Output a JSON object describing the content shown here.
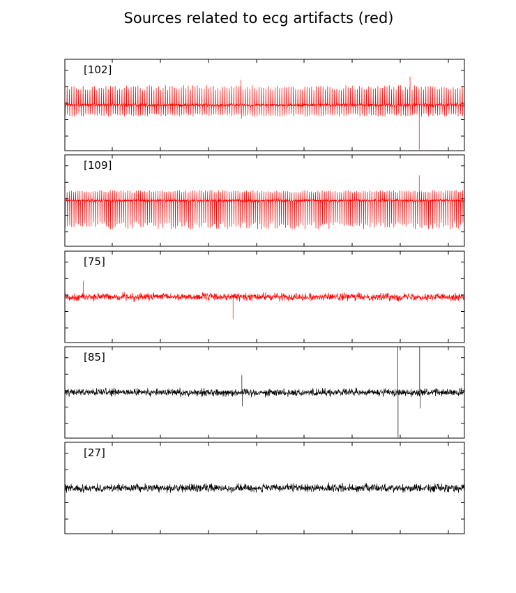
{
  "chart_data": {
    "type": "line",
    "title": "Sources related to ecg artifacts (red)",
    "highlight_color": "#ff0000",
    "default_color": "#000000",
    "xlabel": "",
    "ylabel": "",
    "grid": false,
    "tick_labels_shown": false,
    "panels": [
      {
        "label": "[102]",
        "color": "#ff0000",
        "pattern": "ecg",
        "baseline": 0.0,
        "noise": 0.05,
        "beat_count": 175,
        "beat_amplitude_up": 0.38,
        "beat_amplitude_down": 0.22,
        "spikes": [
          {
            "x": 0.441,
            "y": 0.55
          },
          {
            "x": 0.442,
            "y": -0.3
          },
          {
            "x": 0.864,
            "y": 0.62
          },
          {
            "x": 0.887,
            "y": -0.98
          }
        ],
        "ylim": [
          -1,
          1
        ]
      },
      {
        "label": "[109]",
        "color": "#ff0000",
        "pattern": "ecg",
        "baseline": 0.0,
        "noise": 0.04,
        "beat_count": 185,
        "beat_amplitude_up": 0.2,
        "beat_amplitude_down": 0.55,
        "spikes": [
          {
            "x": 0.887,
            "y": 0.55
          }
        ],
        "ylim": [
          -1,
          1
        ]
      },
      {
        "label": "[75]",
        "color": "#ff0000",
        "pattern": "noise",
        "baseline": 0.0,
        "noise": 0.12,
        "beat_count": 0,
        "beat_amplitude_up": 0.0,
        "beat_amplitude_down": 0.0,
        "spikes": [
          {
            "x": 0.421,
            "y": -0.48
          },
          {
            "x": 0.046,
            "y": 0.35
          }
        ],
        "ylim": [
          -1,
          1
        ]
      },
      {
        "label": "[85]",
        "color": "#000000",
        "pattern": "noise",
        "baseline": 0.0,
        "noise": 0.12,
        "beat_count": 0,
        "beat_amplitude_up": 0.0,
        "beat_amplitude_down": 0.0,
        "spikes": [
          {
            "x": 0.443,
            "y": 0.38
          },
          {
            "x": 0.444,
            "y": -0.3
          },
          {
            "x": 0.833,
            "y": 1.0
          },
          {
            "x": 0.834,
            "y": -0.98
          },
          {
            "x": 0.888,
            "y": 1.0
          },
          {
            "x": 0.889,
            "y": -0.35
          }
        ],
        "ylim": [
          -1,
          1
        ]
      },
      {
        "label": "[27]",
        "color": "#000000",
        "pattern": "noise",
        "baseline": 0.0,
        "noise": 0.13,
        "beat_count": 0,
        "beat_amplitude_up": 0.0,
        "beat_amplitude_down": 0.0,
        "spikes": [],
        "ylim": [
          -1,
          1
        ]
      }
    ]
  }
}
